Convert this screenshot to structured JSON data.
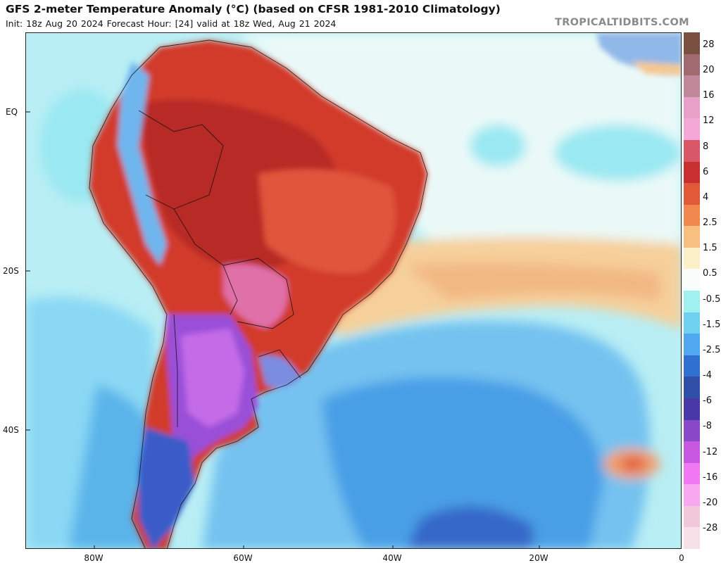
{
  "header": {
    "title": "GFS 2-meter Temperature Anomaly (°C) (based on CFSR 1981-2010 Climatology)",
    "subtitle": "Init: 18z Aug 20 2024   Forecast Hour: [24]   valid at 18z Wed, Aug 21 2024",
    "brand": "TROPICALTIDBITS.COM"
  },
  "map": {
    "lat_labels": [
      "EQ",
      "20S",
      "40S"
    ],
    "lon_labels": [
      "80W",
      "60W",
      "40W",
      "20W",
      "0"
    ]
  },
  "colorbar": {
    "labels": [
      "28",
      "20",
      "16",
      "12",
      "8",
      "6",
      "4",
      "2.5",
      "1.5",
      "0.5",
      "-0.5",
      "-1.5",
      "-2.5",
      "-4",
      "-6",
      "-8",
      "-12",
      "-16",
      "-20",
      "-28"
    ],
    "colors": [
      "#7a5040",
      "#a06a70",
      "#c08898",
      "#e8a0c8",
      "#f4a8d8",
      "#d85868",
      "#c83030",
      "#e05a3a",
      "#f08850",
      "#f8c080",
      "#fcf0c8",
      "#f8fdfc",
      "#a0f0f0",
      "#70d0f0",
      "#50a8f0",
      "#3070d0",
      "#3050a8",
      "#4838a8",
      "#8848c8",
      "#c858e0",
      "#f078f0",
      "#f8a8f0",
      "#f0c8d8",
      "#f8e0e8"
    ]
  }
}
